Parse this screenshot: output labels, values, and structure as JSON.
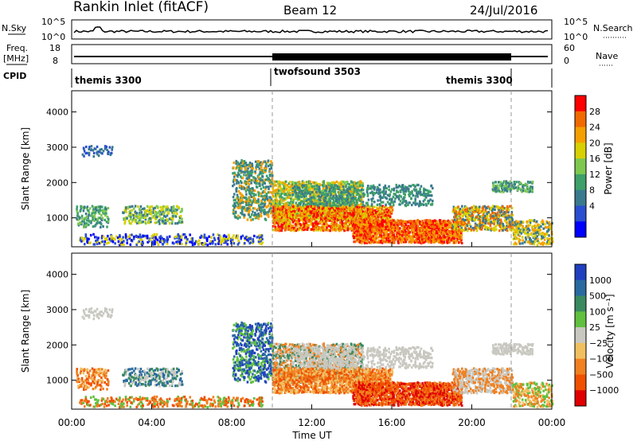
{
  "header": {
    "station": "Rankin Inlet (fitACF)",
    "beam": "Beam 12",
    "date": "24/Jul/2016"
  },
  "top_panels": {
    "nsky_label": "N.Sky",
    "nsky_ticks": [
      "10^5",
      "10^0"
    ],
    "nsearch_label": "N.Search",
    "nsearch_ticks": [
      "10^5",
      "10^0"
    ],
    "freq_label_1": "Freq.",
    "freq_label_2": "[MHz]",
    "freq_ticks": [
      "18",
      "8"
    ],
    "nave_label": "Nave",
    "nave_ticks": [
      "60",
      "0"
    ],
    "cpid_label": "CPID",
    "cpid_segments": [
      {
        "name": "themis 3300",
        "start_hour": 0,
        "end_hour": 10.0
      },
      {
        "name": "twofsound 3503",
        "start_hour": 10.0,
        "end_hour": 22.0
      },
      {
        "name": "themis 3300",
        "start_hour": 22.0,
        "end_hour": 24
      }
    ]
  },
  "chart_data": [
    {
      "type": "heatmap",
      "name": "power",
      "ylabel": "Slant Range [km]",
      "yticks": [
        "1000",
        "2000",
        "3000",
        "4000"
      ],
      "ylim": [
        180,
        4600
      ],
      "colorbar_label": "Power [dB]",
      "colorbar_ticks": [
        "4",
        "8",
        "12",
        "16",
        "20",
        "24",
        "28"
      ],
      "colorbar_range": [
        0,
        32
      ],
      "colors": [
        "#0000ff",
        "#2a4fd0",
        "#3a7a8e",
        "#3ea06a",
        "#7ec850",
        "#d8d000",
        "#f5a000",
        "#f06a00",
        "#ff0000"
      ]
    },
    {
      "type": "heatmap",
      "name": "velocity",
      "ylabel": "Slant Range [km]",
      "yticks": [
        "1000",
        "2000",
        "3000",
        "4000"
      ],
      "ylim": [
        180,
        4600
      ],
      "colorbar_label": "Velocity [m s⁻¹]",
      "colorbar_ticks": [
        "1000",
        "500",
        "100",
        "25",
        "−25",
        "−100",
        "−500",
        "−1000"
      ],
      "colors": [
        "#2040c0",
        "#2a6aa0",
        "#3a8a60",
        "#60c040",
        "#c8c8c0",
        "#f0c060",
        "#f08020",
        "#f05000",
        "#e00000"
      ],
      "xlabel": "Time UT",
      "xticks": [
        "00:00",
        "04:00",
        "08:00",
        "12:00",
        "16:00",
        "20:00",
        "00:00"
      ],
      "xlim": [
        0,
        24
      ]
    }
  ]
}
